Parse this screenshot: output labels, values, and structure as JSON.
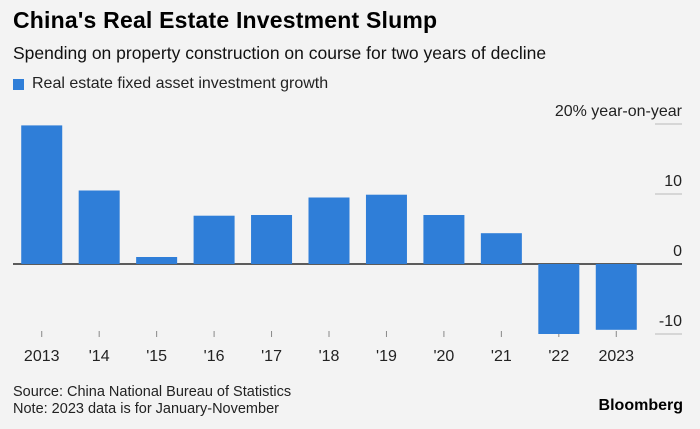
{
  "chart_data": {
    "type": "bar",
    "title": "China's Real Estate Investment Slump",
    "subtitle": "Spending on property construction on course for two years of decline",
    "categories": [
      "2013",
      "'14",
      "'15",
      "'16",
      "'17",
      "'18",
      "'19",
      "'20",
      "'21",
      "'22",
      "2023"
    ],
    "series": [
      {
        "name": "Real estate fixed asset investment growth",
        "values": [
          19.8,
          10.5,
          1.0,
          6.9,
          7.0,
          9.5,
          9.9,
          7.0,
          4.4,
          -10.0,
          -9.4
        ]
      }
    ],
    "ylim": [
      -12.5,
      22
    ],
    "yticks": [
      {
        "value": 20,
        "label": "20% year-on-year"
      },
      {
        "value": 10,
        "label": "10"
      },
      {
        "value": 0,
        "label": "0"
      },
      {
        "value": -10,
        "label": "-10"
      }
    ],
    "bar_color": "#2f7ed8",
    "ylabel": "",
    "xlabel": ""
  },
  "footer": {
    "source": "Source: China National Bureau of Statistics",
    "note": "Note: 2023 data is for January-November"
  },
  "brand": "Bloomberg"
}
